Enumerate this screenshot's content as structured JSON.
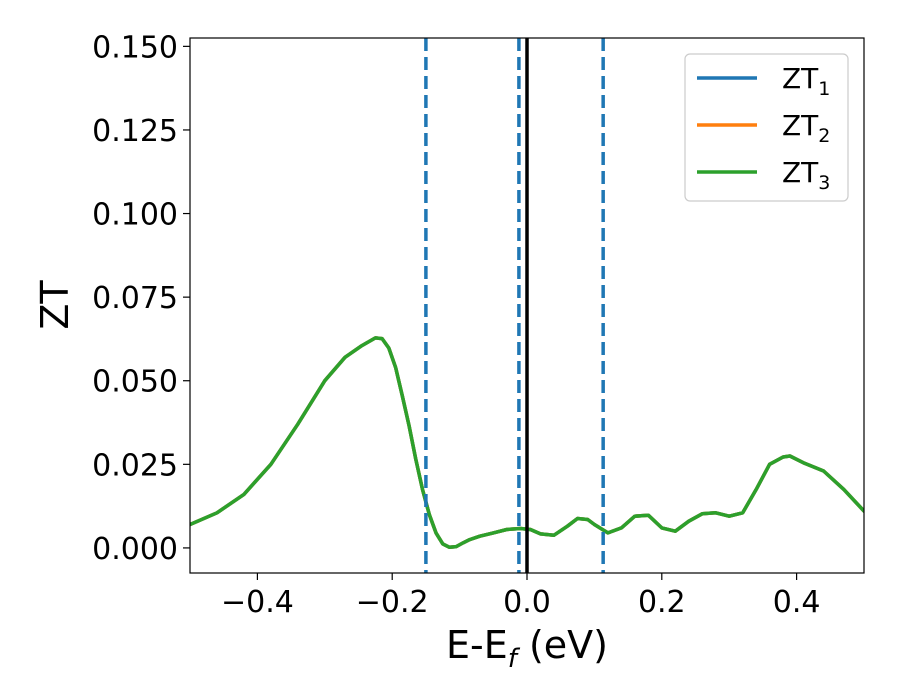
{
  "chart_data": {
    "type": "line",
    "xlabel": {
      "main": "E-E",
      "sub": "f",
      "tail": " (eV)"
    },
    "ylabel": "ZT",
    "xlim": [
      -0.5,
      0.5
    ],
    "ylim": [
      -0.0075,
      0.1525
    ],
    "xticks": [
      -0.4,
      -0.2,
      0.0,
      0.2,
      0.4
    ],
    "xtick_labels": [
      "−0.4",
      "−0.2",
      "0.0",
      "0.2",
      "0.4"
    ],
    "yticks": [
      0.0,
      0.025,
      0.05,
      0.075,
      0.1,
      0.125,
      0.15
    ],
    "ytick_labels": [
      "0.000",
      "0.025",
      "0.050",
      "0.075",
      "0.100",
      "0.125",
      "0.150"
    ],
    "grid": false,
    "legend_position": "top-right",
    "colors": {
      "blue": "#1f77b4",
      "orange": "#ff7f0e",
      "green": "#2ca02c",
      "black": "#000000"
    },
    "vlines": [
      {
        "x": -0.15,
        "style": "dashed",
        "color": "#1f77b4"
      },
      {
        "x": -0.012,
        "style": "dashed",
        "color": "#1f77b4"
      },
      {
        "x": 0.0,
        "style": "solid",
        "color": "#000000"
      },
      {
        "x": 0.113,
        "style": "dashed",
        "color": "#1f77b4"
      }
    ],
    "x": [
      -0.5,
      -0.46,
      -0.42,
      -0.38,
      -0.34,
      -0.3,
      -0.27,
      -0.245,
      -0.225,
      -0.215,
      -0.205,
      -0.195,
      -0.185,
      -0.175,
      -0.165,
      -0.155,
      -0.145,
      -0.135,
      -0.125,
      -0.115,
      -0.105,
      -0.095,
      -0.085,
      -0.07,
      -0.05,
      -0.03,
      -0.01,
      0.005,
      0.02,
      0.04,
      0.06,
      0.075,
      0.09,
      0.1,
      0.12,
      0.14,
      0.16,
      0.18,
      0.2,
      0.22,
      0.24,
      0.26,
      0.28,
      0.3,
      0.32,
      0.34,
      0.36,
      0.38,
      0.39,
      0.41,
      0.44,
      0.47,
      0.5
    ],
    "series": [
      {
        "name": "ZT",
        "sub": "1",
        "color": "#1f77b4",
        "values": [
          0.007,
          0.0105,
          0.016,
          0.025,
          0.037,
          0.05,
          0.057,
          0.0605,
          0.0628,
          0.0626,
          0.0598,
          0.054,
          0.0455,
          0.0365,
          0.0265,
          0.0175,
          0.01,
          0.0045,
          0.0012,
          0.0002,
          0.0004,
          0.0015,
          0.0025,
          0.0035,
          0.0045,
          0.0055,
          0.0058,
          0.0055,
          0.0042,
          0.0038,
          0.0065,
          0.0088,
          0.0085,
          0.007,
          0.0045,
          0.006,
          0.0095,
          0.0098,
          0.006,
          0.005,
          0.008,
          0.0102,
          0.0105,
          0.0095,
          0.0105,
          0.0175,
          0.025,
          0.0272,
          0.0275,
          0.0255,
          0.023,
          0.0175,
          0.011
        ]
      },
      {
        "name": "ZT",
        "sub": "2",
        "color": "#ff7f0e",
        "values": [
          0.007,
          0.0105,
          0.016,
          0.025,
          0.037,
          0.05,
          0.057,
          0.0605,
          0.0628,
          0.0626,
          0.0598,
          0.054,
          0.0455,
          0.0365,
          0.0265,
          0.0175,
          0.01,
          0.0045,
          0.0012,
          0.0002,
          0.0004,
          0.0015,
          0.0025,
          0.0035,
          0.0045,
          0.0055,
          0.0058,
          0.0055,
          0.0042,
          0.0038,
          0.0065,
          0.0088,
          0.0085,
          0.007,
          0.0045,
          0.006,
          0.0095,
          0.0098,
          0.006,
          0.005,
          0.008,
          0.0102,
          0.0105,
          0.0095,
          0.0105,
          0.0175,
          0.025,
          0.0272,
          0.0275,
          0.0255,
          0.023,
          0.0175,
          0.011
        ]
      },
      {
        "name": "ZT",
        "sub": "3",
        "color": "#2ca02c",
        "values": [
          0.007,
          0.0105,
          0.016,
          0.025,
          0.037,
          0.05,
          0.057,
          0.0605,
          0.0628,
          0.0626,
          0.0598,
          0.054,
          0.0455,
          0.0365,
          0.0265,
          0.0175,
          0.01,
          0.0045,
          0.0012,
          0.0002,
          0.0004,
          0.0015,
          0.0025,
          0.0035,
          0.0045,
          0.0055,
          0.0058,
          0.0055,
          0.0042,
          0.0038,
          0.0065,
          0.0088,
          0.0085,
          0.007,
          0.0045,
          0.006,
          0.0095,
          0.0098,
          0.006,
          0.005,
          0.008,
          0.0102,
          0.0105,
          0.0095,
          0.0105,
          0.0175,
          0.025,
          0.0272,
          0.0275,
          0.0255,
          0.023,
          0.0175,
          0.011
        ]
      }
    ]
  }
}
